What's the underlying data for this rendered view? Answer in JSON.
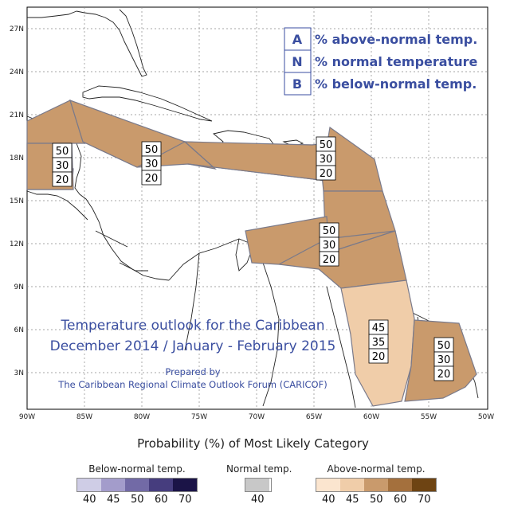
{
  "map": {
    "lat_labels": [
      "27N",
      "24N",
      "21N",
      "18N",
      "15N",
      "12N",
      "9N",
      "6N",
      "3N"
    ],
    "lon_labels": [
      "90W",
      "85W",
      "80W",
      "75W",
      "70W",
      "65W",
      "60W",
      "55W",
      "50W"
    ],
    "key": [
      {
        "letter": "A",
        "text": "% above-normal temp."
      },
      {
        "letter": "N",
        "text": "% normal temperature"
      },
      {
        "letter": "B",
        "text": "% below-normal temp."
      }
    ],
    "title_line1": "Temperature outlook for the Caribbean",
    "title_line2": "December 2014 / January - February 2015",
    "credit_line1": "Prepared by",
    "credit_line2": "The Caribbean Regional Climate Outlook Forum (CARICOF)",
    "probability_boxes": [
      {
        "values": [
          "50",
          "30",
          "20"
        ]
      },
      {
        "values": [
          "50",
          "30",
          "20"
        ]
      },
      {
        "values": [
          "50",
          "30",
          "20"
        ]
      },
      {
        "values": [
          "50",
          "30",
          "20"
        ]
      },
      {
        "values": [
          "45",
          "35",
          "20"
        ]
      },
      {
        "values": [
          "50",
          "30",
          "20"
        ]
      }
    ],
    "region_colors": {
      "above_50": "#c99a6c",
      "above_45": "#f0cda9",
      "outline": "#7a7a8a"
    }
  },
  "legend": {
    "heading": "Probability (%) of Most Likely Category",
    "below": {
      "title": "Below-normal temp.",
      "colors": [
        "#cfcde6",
        "#a39ccb",
        "#726aa6",
        "#463d7e",
        "#1b1447"
      ],
      "values": [
        "40",
        "45",
        "50",
        "60",
        "70"
      ]
    },
    "normal": {
      "title": "Normal temp.",
      "colors": [
        "#c8c8c8"
      ],
      "values": [
        "40"
      ]
    },
    "above": {
      "title": "Above-normal temp.",
      "colors": [
        "#fbe5cf",
        "#f0cda9",
        "#c99a6c",
        "#a4703d",
        "#6e4413"
      ],
      "values": [
        "40",
        "45",
        "50",
        "60",
        "70"
      ]
    }
  }
}
